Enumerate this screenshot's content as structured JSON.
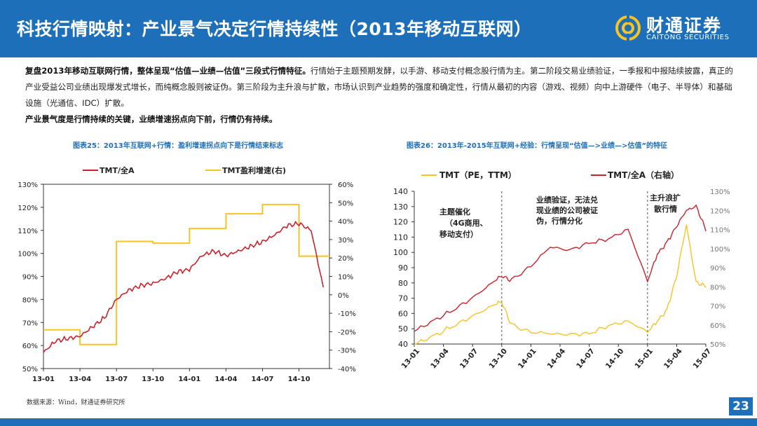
{
  "header": {
    "title": "科技行情映射：产业景气决定行情持续性（2013年移动互联网）",
    "logo_cn": "财通证券",
    "logo_en": "CAITONG SECURITIES"
  },
  "intro": {
    "p1_bold": "复盘2013年移动互联网行情，整体呈现“估值—业绩—估值”三段式行情特征。",
    "p1_rest": "行情始于主题预期发酵，以手游、移动支付概念股行情为主。第二阶段交易业绩验证，一季报和中报陆续披露，真正的产业受益公司业绩出现爆发式增长，而纯概念股则被证伪。第三阶段为主升浪与扩散，市场认识到产业趋势的强度和确定性，行情从最初的内容（游戏、视频）向中上游硬件（电子、半导体）和基础设施（光通信、IDC）扩散。",
    "p2_bold": "产业景气度是行情持续的关键，业绩增速拐点向下前，行情仍有持续。"
  },
  "footer": {
    "source": "数据来源：Wind，财通证券研究所",
    "page": "23"
  },
  "colors": {
    "red": "#c8232c",
    "gold": "#f7c325",
    "blue": "#1d6fba"
  },
  "chart_data": [
    {
      "type": "line",
      "title": "图表25：2013年互联网+行情：盈利增速拐点向下是行情结束标志",
      "x_ticks": [
        "13-01",
        "13-04",
        "13-07",
        "13-10",
        "14-01",
        "14-04",
        "14-07",
        "14-10"
      ],
      "y_left_ticks": [
        "130%",
        "120%",
        "110%",
        "100%",
        "90%",
        "80%",
        "70%",
        "60%",
        "50%"
      ],
      "y_right_ticks": [
        "60%",
        "50%",
        "40%",
        "30%",
        "20%",
        "10%",
        "0%",
        "-10%",
        "-20%",
        "-30%",
        "-40%"
      ],
      "ylim_left": [
        0.5,
        1.3
      ],
      "ylim_right": [
        -0.4,
        0.6
      ],
      "legend_position": "top",
      "series": [
        {
          "name": "TMT/全A",
          "axis": "left",
          "x": [
            "13-01",
            "13-02",
            "13-03",
            "13-04",
            "13-05",
            "13-06",
            "13-07",
            "13-08",
            "13-09",
            "13-10",
            "13-11",
            "13-12",
            "14-01",
            "14-02",
            "14-03",
            "14-04",
            "14-05",
            "14-06",
            "14-07",
            "14-08",
            "14-09",
            "14-10",
            "14-11",
            "14-12"
          ],
          "values": [
            0.57,
            0.62,
            0.63,
            0.64,
            0.68,
            0.72,
            0.8,
            0.84,
            0.86,
            0.87,
            0.89,
            0.92,
            0.93,
            0.99,
            1.01,
            0.99,
            1.01,
            1.03,
            1.05,
            1.08,
            1.12,
            1.13,
            1.1,
            0.85
          ]
        },
        {
          "name": "TMT盈利增速(右)",
          "axis": "right",
          "x": [
            "13-01",
            "13-04",
            "13-07",
            "13-10",
            "14-01",
            "14-04",
            "14-07",
            "14-10",
            "14-12"
          ],
          "values": [
            -0.19,
            -0.27,
            0.29,
            0.28,
            0.36,
            0.44,
            0.49,
            0.21,
            0.21
          ]
        }
      ]
    },
    {
      "type": "line",
      "title": "图表26：2013年-2015年互联网+经验：行情呈现“估值—>业绩—>估值”的特征",
      "x_ticks": [
        "13-01",
        "13-04",
        "13-07",
        "13-10",
        "14-01",
        "14-04",
        "14-07",
        "14-10",
        "15-01",
        "15-04",
        "15-07"
      ],
      "y_left_ticks": [
        "140",
        "130",
        "120",
        "110",
        "100",
        "90",
        "80",
        "70",
        "60",
        "50",
        "40"
      ],
      "y_right_ticks": [
        "130%",
        "120%",
        "110%",
        "100%",
        "90%",
        "80%",
        "70%",
        "60%",
        "50%"
      ],
      "ylim_left": [
        40,
        140
      ],
      "ylim_right": [
        0.5,
        1.3
      ],
      "legend_position": "top",
      "annotations": [
        "主题催化（4G商用、移动支付）",
        "业绩验证，无法兑现业绩的公司被证伪，行情分化",
        "主升浪扩散行情"
      ],
      "series": [
        {
          "name": "TMT（PE，TTM）",
          "axis": "left",
          "x": [
            "13-01",
            "13-03",
            "13-05",
            "13-07",
            "13-09",
            "13-10",
            "13-11",
            "14-01",
            "14-03",
            "14-05",
            "14-07",
            "14-09",
            "14-11",
            "15-01",
            "15-02",
            "15-03",
            "15-04",
            "15-05",
            "15-06",
            "15-07"
          ],
          "values": [
            40,
            45,
            52,
            58,
            65,
            68,
            52,
            48,
            47,
            46,
            47,
            52,
            55,
            48,
            55,
            62,
            85,
            118,
            80,
            78
          ]
        },
        {
          "name": "TMT/全A（右轴）",
          "axis": "right",
          "x": [
            "13-01",
            "13-03",
            "13-05",
            "13-07",
            "13-09",
            "13-10",
            "13-11",
            "14-01",
            "14-03",
            "14-05",
            "14-07",
            "14-09",
            "14-11",
            "15-01",
            "15-02",
            "15-03",
            "15-04",
            "15-05",
            "15-06",
            "15-07"
          ],
          "values": [
            0.57,
            0.62,
            0.68,
            0.74,
            0.82,
            0.86,
            0.83,
            0.91,
            1.01,
            0.99,
            1.03,
            1.05,
            1.1,
            0.83,
            0.97,
            1.03,
            1.12,
            1.2,
            1.22,
            1.1
          ]
        }
      ]
    }
  ]
}
